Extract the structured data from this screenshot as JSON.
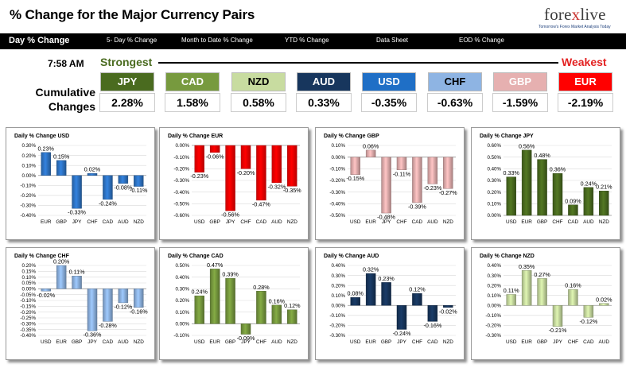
{
  "page": {
    "title": "% Change for the Major Currency Pairs",
    "logo": {
      "brand": "forexlive",
      "tagline": "Tomorrow's Forex Market Analysis Today"
    }
  },
  "nav": [
    "Day % Change",
    "5- Day % Change",
    "Month to Date % Change",
    "YTD % Change",
    "Data Sheet",
    "EOD % Change"
  ],
  "ranking": {
    "time": "7:58 AM",
    "strongest_label": "Strongest",
    "weakest_label": "Weakest",
    "cumulative_label": "Cumulative Changes",
    "currencies": [
      {
        "code": "JPY",
        "value": "2.28%",
        "color": "#4a6b1f"
      },
      {
        "code": "CAD",
        "value": "1.58%",
        "color": "#779a3e"
      },
      {
        "code": "NZD",
        "value": "0.58%",
        "color": "#c8dca0",
        "text_color": "#000000"
      },
      {
        "code": "AUD",
        "value": "0.33%",
        "color": "#17365d"
      },
      {
        "code": "USD",
        "value": "-0.35%",
        "color": "#1f6fc6"
      },
      {
        "code": "CHF",
        "value": "-0.63%",
        "color": "#8eb4e3",
        "text_color": "#000000"
      },
      {
        "code": "GBP",
        "value": "-1.59%",
        "color": "#e6b0b0"
      },
      {
        "code": "EUR",
        "value": "-2.19%",
        "color": "#ff0000"
      }
    ]
  },
  "chart_data": [
    {
      "type": "bar",
      "title": "Daily % Change USD",
      "color": "#2e75c7",
      "ylim": [
        -0.4,
        0.3
      ],
      "step": 0.1,
      "decimals": 2,
      "categories": [
        "EUR",
        "GBP",
        "JPY",
        "CHF",
        "CAD",
        "AUD",
        "NZD"
      ],
      "values": [
        0.23,
        0.15,
        -0.33,
        0.02,
        -0.24,
        -0.08,
        -0.11
      ],
      "labels": [
        "0.23%",
        "0.15%",
        "-0.33%",
        "0.02%",
        "-0.24%",
        "-0.08%",
        "-0.11%"
      ]
    },
    {
      "type": "bar",
      "title": "Daily % Change EUR",
      "color": "#ff0000",
      "ylim": [
        -0.6,
        0.0
      ],
      "step": 0.1,
      "decimals": 2,
      "categories": [
        "USD",
        "GBP",
        "JPY",
        "CHF",
        "CAD",
        "AUD",
        "NZD"
      ],
      "values": [
        -0.23,
        -0.06,
        -0.56,
        -0.2,
        -0.47,
        -0.32,
        -0.35
      ],
      "labels": [
        "-0.23%",
        "-0.06%",
        "-0.56%",
        "-0.20%",
        "-0.47%",
        "-0.32%",
        "-0.35%"
      ]
    },
    {
      "type": "bar",
      "title": "Daily % Change GBP",
      "color": "#e6b0b0",
      "ylim": [
        -0.5,
        0.1
      ],
      "step": 0.1,
      "decimals": 2,
      "categories": [
        "USD",
        "EUR",
        "JPY",
        "CHF",
        "CAD",
        "AUD",
        "NZD"
      ],
      "values": [
        -0.15,
        0.06,
        -0.48,
        -0.11,
        -0.39,
        -0.23,
        -0.27
      ],
      "labels": [
        "-0.15%",
        "0.06%",
        "-0.48%",
        "-0.11%",
        "-0.39%",
        "-0.23%",
        "-0.27%"
      ]
    },
    {
      "type": "bar",
      "title": "Daily % Change JPY",
      "color": "#4a6b1f",
      "ylim": [
        0.0,
        0.6
      ],
      "step": 0.1,
      "decimals": 2,
      "categories": [
        "USD",
        "EUR",
        "GBP",
        "CHF",
        "CAD",
        "AUD",
        "NZD"
      ],
      "values": [
        0.33,
        0.56,
        0.48,
        0.36,
        0.09,
        0.24,
        0.21
      ],
      "labels": [
        "0.33%",
        "0.56%",
        "0.48%",
        "0.36%",
        "0.09%",
        "0.24%",
        "0.21%"
      ]
    },
    {
      "type": "bar",
      "title": "Daily % Change CHF",
      "color": "#8eb4e3",
      "ylim": [
        -0.4,
        0.2
      ],
      "step": 0.05,
      "decimals": 2,
      "categories": [
        "USD",
        "EUR",
        "GBP",
        "JPY",
        "CAD",
        "AUD",
        "NZD"
      ],
      "values": [
        -0.02,
        0.2,
        0.11,
        -0.36,
        -0.28,
        -0.12,
        -0.16
      ],
      "labels": [
        "-0.02%",
        "0.20%",
        "0.11%",
        "-0.36%",
        "-0.28%",
        "-0.12%",
        "-0.16%"
      ]
    },
    {
      "type": "bar",
      "title": "Daily % Change CAD",
      "color": "#779a3e",
      "ylim": [
        -0.1,
        0.5
      ],
      "step": 0.1,
      "decimals": 2,
      "categories": [
        "USD",
        "EUR",
        "GBP",
        "JPY",
        "CHF",
        "AUD",
        "NZD"
      ],
      "values": [
        0.24,
        0.47,
        0.39,
        -0.09,
        0.28,
        0.16,
        0.12
      ],
      "labels": [
        "0.24%",
        "0.47%",
        "0.39%",
        "-0.09%",
        "0.28%",
        "0.16%",
        "0.12%"
      ]
    },
    {
      "type": "bar",
      "title": "Daily % Change AUD",
      "color": "#17365d",
      "ylim": [
        -0.3,
        0.4
      ],
      "step": 0.1,
      "decimals": 2,
      "categories": [
        "USD",
        "EUR",
        "GBP",
        "JPY",
        "CHF",
        "CAD",
        "NZD"
      ],
      "values": [
        0.08,
        0.32,
        0.23,
        -0.24,
        0.12,
        -0.16,
        -0.02
      ],
      "labels": [
        "0.08%",
        "0.32%",
        "0.23%",
        "-0.24%",
        "0.12%",
        "-0.16%",
        "-0.02%"
      ]
    },
    {
      "type": "bar",
      "title": "Daily % Change NZD",
      "color": "#c8dca0",
      "ylim": [
        -0.3,
        0.4
      ],
      "step": 0.1,
      "decimals": 2,
      "categories": [
        "USD",
        "EUR",
        "GBP",
        "JPY",
        "CHF",
        "CAD",
        "AUD"
      ],
      "values": [
        0.11,
        0.35,
        0.27,
        -0.21,
        0.16,
        -0.12,
        0.02
      ],
      "labels": [
        "0.11%",
        "0.35%",
        "0.27%",
        "-0.21%",
        "0.16%",
        "-0.12%",
        "0.02%"
      ]
    }
  ]
}
